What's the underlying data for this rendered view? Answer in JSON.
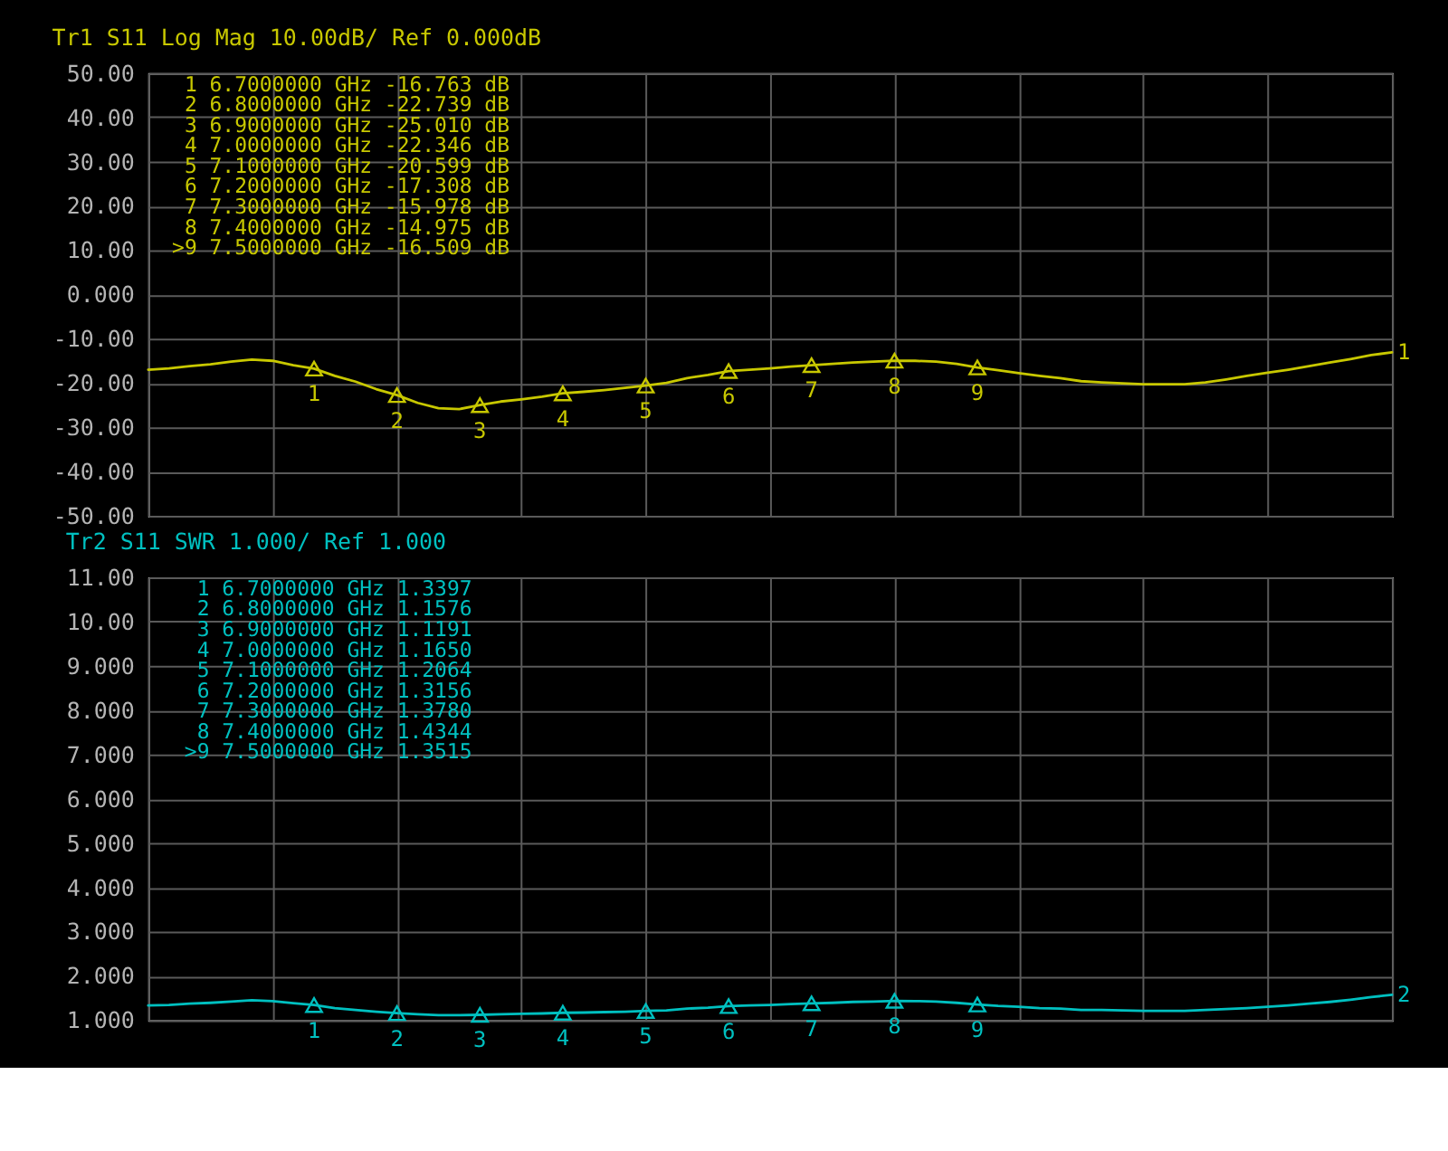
{
  "chart_data": [
    {
      "type": "line",
      "title": "Tr1 S11 Log Mag 10.00dB/ Ref 0.000dB",
      "categories": [
        null,
        null,
        null,
        null,
        null,
        null,
        null,
        null,
        null,
        null,
        null,
        null,
        null,
        null,
        null,
        null,
        null,
        null,
        null,
        null,
        null,
        null,
        null,
        null,
        null,
        null,
        null,
        null,
        null,
        null,
        null,
        null,
        null,
        null,
        null,
        null,
        null,
        null,
        null,
        null,
        null,
        null,
        null,
        null,
        null,
        null,
        null,
        null,
        null,
        null,
        null,
        null,
        null,
        null,
        null,
        null,
        null,
        null,
        null,
        null,
        null
      ],
      "ylim": [
        -50,
        50
      ],
      "yticks": [
        {
          "value": 50,
          "label": "50.00"
        },
        {
          "value": 40,
          "label": "40.00"
        },
        {
          "value": 30,
          "label": "30.00"
        },
        {
          "value": 20,
          "label": "20.00"
        },
        {
          "value": 10,
          "label": "10.00"
        },
        {
          "value": 0,
          "label": "0.000"
        },
        {
          "value": -10,
          "label": "-10.00"
        },
        {
          "value": -20,
          "label": "-20.00"
        },
        {
          "value": -30,
          "label": "-30.00"
        },
        {
          "value": -40,
          "label": "-40.00"
        },
        {
          "value": -50,
          "label": "-50.00"
        }
      ],
      "tick_labels": "y",
      "grid": true,
      "series": [
        {
          "name": "1",
          "color": "#c8c800",
          "values": [
            -17.0,
            -16.7,
            -16.2,
            -15.8,
            -15.2,
            -14.7,
            -15.0,
            -16.0,
            -16.763,
            -18.4,
            -19.7,
            -21.4,
            -22.739,
            -24.5,
            -25.7,
            -25.9,
            -25.01,
            -24.2,
            -23.7,
            -23.1,
            -22.346,
            -22.0,
            -21.6,
            -21.1,
            -20.599,
            -20.0,
            -18.9,
            -18.2,
            -17.308,
            -17.0,
            -16.7,
            -16.3,
            -15.978,
            -15.7,
            -15.4,
            -15.2,
            -14.975,
            -15.0,
            -15.2,
            -15.7,
            -16.509,
            -17.1,
            -17.8,
            -18.4,
            -18.9,
            -19.6,
            -19.9,
            -20.1,
            -20.3,
            -20.3,
            -20.3,
            -19.9,
            -19.2,
            -18.4,
            -17.7,
            -17.0,
            -16.2,
            -15.4,
            -14.6,
            -13.7,
            -13.1
          ]
        },
        {
          "type": "scatter",
          "name": "1",
          "color": "#c8c800",
          "marker": "triangle",
          "values": [
            null,
            null,
            null,
            null,
            null,
            null,
            null,
            null,
            -16.763,
            null,
            null,
            null,
            null,
            null,
            null,
            null,
            null,
            null,
            null,
            null,
            null,
            null,
            null,
            null,
            null,
            null,
            null,
            null,
            null,
            null,
            null,
            null,
            null,
            null,
            null,
            null,
            null,
            null,
            null,
            null,
            null,
            null,
            null,
            null,
            null,
            null,
            null,
            null,
            null,
            null,
            null,
            null,
            null,
            null,
            null,
            null,
            null,
            null,
            null,
            null,
            null
          ]
        },
        {
          "type": "scatter",
          "name": "2",
          "color": "#c8c800",
          "marker": "triangle",
          "values": [
            null,
            null,
            null,
            null,
            null,
            null,
            null,
            null,
            null,
            null,
            null,
            null,
            -22.739,
            null,
            null,
            null,
            null,
            null,
            null,
            null,
            null,
            null,
            null,
            null,
            null,
            null,
            null,
            null,
            null,
            null,
            null,
            null,
            null,
            null,
            null,
            null,
            null,
            null,
            null,
            null,
            null,
            null,
            null,
            null,
            null,
            null,
            null,
            null,
            null,
            null,
            null,
            null,
            null,
            null,
            null,
            null,
            null,
            null,
            null,
            null,
            null
          ]
        },
        {
          "type": "scatter",
          "name": "3",
          "color": "#c8c800",
          "marker": "triangle",
          "values": [
            null,
            null,
            null,
            null,
            null,
            null,
            null,
            null,
            null,
            null,
            null,
            null,
            null,
            null,
            null,
            null,
            -25.01,
            null,
            null,
            null,
            null,
            null,
            null,
            null,
            null,
            null,
            null,
            null,
            null,
            null,
            null,
            null,
            null,
            null,
            null,
            null,
            null,
            null,
            null,
            null,
            null,
            null,
            null,
            null,
            null,
            null,
            null,
            null,
            null,
            null,
            null,
            null,
            null,
            null,
            null,
            null,
            null,
            null,
            null,
            null,
            null
          ]
        },
        {
          "type": "scatter",
          "name": "4",
          "color": "#c8c800",
          "marker": "triangle",
          "values": [
            null,
            null,
            null,
            null,
            null,
            null,
            null,
            null,
            null,
            null,
            null,
            null,
            null,
            null,
            null,
            null,
            null,
            null,
            null,
            null,
            -22.346,
            null,
            null,
            null,
            null,
            null,
            null,
            null,
            null,
            null,
            null,
            null,
            null,
            null,
            null,
            null,
            null,
            null,
            null,
            null,
            null,
            null,
            null,
            null,
            null,
            null,
            null,
            null,
            null,
            null,
            null,
            null,
            null,
            null,
            null,
            null,
            null,
            null,
            null,
            null,
            null
          ]
        },
        {
          "type": "scatter",
          "name": "5",
          "color": "#c8c800",
          "marker": "triangle",
          "values": [
            null,
            null,
            null,
            null,
            null,
            null,
            null,
            null,
            null,
            null,
            null,
            null,
            null,
            null,
            null,
            null,
            null,
            null,
            null,
            null,
            null,
            null,
            null,
            null,
            -20.599,
            null,
            null,
            null,
            null,
            null,
            null,
            null,
            null,
            null,
            null,
            null,
            null,
            null,
            null,
            null,
            null,
            null,
            null,
            null,
            null,
            null,
            null,
            null,
            null,
            null,
            null,
            null,
            null,
            null,
            null,
            null,
            null,
            null,
            null,
            null,
            null
          ]
        },
        {
          "type": "scatter",
          "name": "6",
          "color": "#c8c800",
          "marker": "triangle",
          "values": [
            null,
            null,
            null,
            null,
            null,
            null,
            null,
            null,
            null,
            null,
            null,
            null,
            null,
            null,
            null,
            null,
            null,
            null,
            null,
            null,
            null,
            null,
            null,
            null,
            null,
            null,
            null,
            null,
            -17.308,
            null,
            null,
            null,
            null,
            null,
            null,
            null,
            null,
            null,
            null,
            null,
            null,
            null,
            null,
            null,
            null,
            null,
            null,
            null,
            null,
            null,
            null,
            null,
            null,
            null,
            null,
            null,
            null,
            null,
            null,
            null,
            null
          ]
        },
        {
          "type": "scatter",
          "name": "7",
          "color": "#c8c800",
          "marker": "triangle",
          "values": [
            null,
            null,
            null,
            null,
            null,
            null,
            null,
            null,
            null,
            null,
            null,
            null,
            null,
            null,
            null,
            null,
            null,
            null,
            null,
            null,
            null,
            null,
            null,
            null,
            null,
            null,
            null,
            null,
            null,
            null,
            null,
            null,
            -15.978,
            null,
            null,
            null,
            null,
            null,
            null,
            null,
            null,
            null,
            null,
            null,
            null,
            null,
            null,
            null,
            null,
            null,
            null,
            null,
            null,
            null,
            null,
            null,
            null,
            null,
            null,
            null,
            null
          ]
        },
        {
          "type": "scatter",
          "name": "8",
          "color": "#c8c800",
          "marker": "triangle",
          "values": [
            null,
            null,
            null,
            null,
            null,
            null,
            null,
            null,
            null,
            null,
            null,
            null,
            null,
            null,
            null,
            null,
            null,
            null,
            null,
            null,
            null,
            null,
            null,
            null,
            null,
            null,
            null,
            null,
            null,
            null,
            null,
            null,
            null,
            null,
            null,
            null,
            -14.975,
            null,
            null,
            null,
            null,
            null,
            null,
            null,
            null,
            null,
            null,
            null,
            null,
            null,
            null,
            null,
            null,
            null,
            null,
            null,
            null,
            null,
            null,
            null,
            null
          ]
        },
        {
          "type": "scatter",
          "name": "9",
          "color": "#c8c800",
          "marker": "triangle",
          "values": [
            null,
            null,
            null,
            null,
            null,
            null,
            null,
            null,
            null,
            null,
            null,
            null,
            null,
            null,
            null,
            null,
            null,
            null,
            null,
            null,
            null,
            null,
            null,
            null,
            null,
            null,
            null,
            null,
            null,
            null,
            null,
            null,
            null,
            null,
            null,
            null,
            null,
            null,
            null,
            null,
            -16.509,
            null,
            null,
            null,
            null,
            null,
            null,
            null,
            null,
            null,
            null,
            null,
            null,
            null,
            null,
            null,
            null,
            null,
            null,
            null,
            null
          ]
        }
      ],
      "annotations": [
        "1  6.7000000 GHz -16.763 dB",
        "2  6.8000000 GHz -22.739 dB",
        "3  6.9000000 GHz -25.010 dB",
        "4  7.0000000 GHz -22.346 dB",
        "5  7.1000000 GHz -20.599 dB",
        "6  7.2000000 GHz -17.308 dB",
        "7  7.3000000 GHz -15.978 dB",
        "8  7.4000000 GHz -14.975 dB",
        ">9  7.5000000 GHz -16.509 dB"
      ]
    },
    {
      "type": "line",
      "title": "Tr2 S11 SWR 1.000/ Ref 1.000",
      "categories": [
        null,
        null,
        null,
        null,
        null,
        null,
        null,
        null,
        null,
        null,
        null,
        null,
        null,
        null,
        null,
        null,
        null,
        null,
        null,
        null,
        null,
        null,
        null,
        null,
        null,
        null,
        null,
        null,
        null,
        null,
        null,
        null,
        null,
        null,
        null,
        null,
        null,
        null,
        null,
        null,
        null,
        null,
        null,
        null,
        null,
        null,
        null,
        null,
        null,
        null,
        null,
        null,
        null,
        null,
        null,
        null,
        null,
        null,
        null,
        null,
        null
      ],
      "ylim": [
        1,
        11
      ],
      "yticks": [
        {
          "value": 11,
          "label": "11.00"
        },
        {
          "value": 10,
          "label": "10.00"
        },
        {
          "value": 9,
          "label": "9.000"
        },
        {
          "value": 8,
          "label": "8.000"
        },
        {
          "value": 7,
          "label": "7.000"
        },
        {
          "value": 6,
          "label": "6.000"
        },
        {
          "value": 5,
          "label": "5.000"
        },
        {
          "value": 4,
          "label": "4.000"
        },
        {
          "value": 3,
          "label": "3.000"
        },
        {
          "value": 2,
          "label": "2.000"
        },
        {
          "value": 1,
          "label": "1.000"
        }
      ],
      "tick_labels": "y",
      "grid": true,
      "series": [
        {
          "name": "2",
          "color": "#00c0c0",
          "values": [
            1.33,
            1.34,
            1.37,
            1.39,
            1.42,
            1.45,
            1.43,
            1.38,
            1.3397,
            1.27,
            1.23,
            1.19,
            1.1576,
            1.13,
            1.11,
            1.11,
            1.1191,
            1.13,
            1.14,
            1.15,
            1.165,
            1.17,
            1.18,
            1.19,
            1.2064,
            1.22,
            1.26,
            1.28,
            1.3156,
            1.33,
            1.34,
            1.36,
            1.378,
            1.39,
            1.41,
            1.42,
            1.4344,
            1.43,
            1.42,
            1.39,
            1.3515,
            1.32,
            1.3,
            1.27,
            1.26,
            1.23,
            1.23,
            1.22,
            1.21,
            1.21,
            1.21,
            1.23,
            1.25,
            1.27,
            1.3,
            1.33,
            1.37,
            1.41,
            1.46,
            1.52,
            1.57
          ]
        },
        {
          "type": "scatter",
          "name": "1",
          "color": "#00c0c0",
          "marker": "triangle",
          "values": [
            null,
            null,
            null,
            null,
            null,
            null,
            null,
            null,
            1.3397,
            null,
            null,
            null,
            null,
            null,
            null,
            null,
            null,
            null,
            null,
            null,
            null,
            null,
            null,
            null,
            null,
            null,
            null,
            null,
            null,
            null,
            null,
            null,
            null,
            null,
            null,
            null,
            null,
            null,
            null,
            null,
            null,
            null,
            null,
            null,
            null,
            null,
            null,
            null,
            null,
            null,
            null,
            null,
            null,
            null,
            null,
            null,
            null,
            null,
            null,
            null,
            null
          ]
        },
        {
          "type": "scatter",
          "name": "2",
          "color": "#00c0c0",
          "marker": "triangle",
          "values": [
            null,
            null,
            null,
            null,
            null,
            null,
            null,
            null,
            null,
            null,
            null,
            null,
            1.1576,
            null,
            null,
            null,
            null,
            null,
            null,
            null,
            null,
            null,
            null,
            null,
            null,
            null,
            null,
            null,
            null,
            null,
            null,
            null,
            null,
            null,
            null,
            null,
            null,
            null,
            null,
            null,
            null,
            null,
            null,
            null,
            null,
            null,
            null,
            null,
            null,
            null,
            null,
            null,
            null,
            null,
            null,
            null,
            null,
            null,
            null,
            null,
            null
          ]
        },
        {
          "type": "scatter",
          "name": "3",
          "color": "#00c0c0",
          "marker": "triangle",
          "values": [
            null,
            null,
            null,
            null,
            null,
            null,
            null,
            null,
            null,
            null,
            null,
            null,
            null,
            null,
            null,
            null,
            1.1191,
            null,
            null,
            null,
            null,
            null,
            null,
            null,
            null,
            null,
            null,
            null,
            null,
            null,
            null,
            null,
            null,
            null,
            null,
            null,
            null,
            null,
            null,
            null,
            null,
            null,
            null,
            null,
            null,
            null,
            null,
            null,
            null,
            null,
            null,
            null,
            null,
            null,
            null,
            null,
            null,
            null,
            null,
            null,
            null
          ]
        },
        {
          "type": "scatter",
          "name": "4",
          "color": "#00c0c0",
          "marker": "triangle",
          "values": [
            null,
            null,
            null,
            null,
            null,
            null,
            null,
            null,
            null,
            null,
            null,
            null,
            null,
            null,
            null,
            null,
            null,
            null,
            null,
            null,
            1.165,
            null,
            null,
            null,
            null,
            null,
            null,
            null,
            null,
            null,
            null,
            null,
            null,
            null,
            null,
            null,
            null,
            null,
            null,
            null,
            null,
            null,
            null,
            null,
            null,
            null,
            null,
            null,
            null,
            null,
            null,
            null,
            null,
            null,
            null,
            null,
            null,
            null,
            null,
            null,
            null
          ]
        },
        {
          "type": "scatter",
          "name": "5",
          "color": "#00c0c0",
          "marker": "triangle",
          "values": [
            null,
            null,
            null,
            null,
            null,
            null,
            null,
            null,
            null,
            null,
            null,
            null,
            null,
            null,
            null,
            null,
            null,
            null,
            null,
            null,
            null,
            null,
            null,
            null,
            1.2064,
            null,
            null,
            null,
            null,
            null,
            null,
            null,
            null,
            null,
            null,
            null,
            null,
            null,
            null,
            null,
            null,
            null,
            null,
            null,
            null,
            null,
            null,
            null,
            null,
            null,
            null,
            null,
            null,
            null,
            null,
            null,
            null,
            null,
            null,
            null,
            null
          ]
        },
        {
          "type": "scatter",
          "name": "6",
          "color": "#00c0c0",
          "marker": "triangle",
          "values": [
            null,
            null,
            null,
            null,
            null,
            null,
            null,
            null,
            null,
            null,
            null,
            null,
            null,
            null,
            null,
            null,
            null,
            null,
            null,
            null,
            null,
            null,
            null,
            null,
            null,
            null,
            null,
            null,
            1.3156,
            null,
            null,
            null,
            null,
            null,
            null,
            null,
            null,
            null,
            null,
            null,
            null,
            null,
            null,
            null,
            null,
            null,
            null,
            null,
            null,
            null,
            null,
            null,
            null,
            null,
            null,
            null,
            null,
            null,
            null,
            null,
            null
          ]
        },
        {
          "type": "scatter",
          "name": "7",
          "color": "#00c0c0",
          "marker": "triangle",
          "values": [
            null,
            null,
            null,
            null,
            null,
            null,
            null,
            null,
            null,
            null,
            null,
            null,
            null,
            null,
            null,
            null,
            null,
            null,
            null,
            null,
            null,
            null,
            null,
            null,
            null,
            null,
            null,
            null,
            null,
            null,
            null,
            null,
            1.378,
            null,
            null,
            null,
            null,
            null,
            null,
            null,
            null,
            null,
            null,
            null,
            null,
            null,
            null,
            null,
            null,
            null,
            null,
            null,
            null,
            null,
            null,
            null,
            null,
            null,
            null,
            null,
            null
          ]
        },
        {
          "type": "scatter",
          "name": "8",
          "color": "#00c0c0",
          "marker": "triangle",
          "values": [
            null,
            null,
            null,
            null,
            null,
            null,
            null,
            null,
            null,
            null,
            null,
            null,
            null,
            null,
            null,
            null,
            null,
            null,
            null,
            null,
            null,
            null,
            null,
            null,
            null,
            null,
            null,
            null,
            null,
            null,
            null,
            null,
            null,
            null,
            null,
            null,
            1.4344,
            null,
            null,
            null,
            null,
            null,
            null,
            null,
            null,
            null,
            null,
            null,
            null,
            null,
            null,
            null,
            null,
            null,
            null,
            null,
            null,
            null,
            null,
            null,
            null
          ]
        },
        {
          "type": "scatter",
          "name": "9",
          "color": "#00c0c0",
          "marker": "triangle",
          "values": [
            null,
            null,
            null,
            null,
            null,
            null,
            null,
            null,
            null,
            null,
            null,
            null,
            null,
            null,
            null,
            null,
            null,
            null,
            null,
            null,
            null,
            null,
            null,
            null,
            null,
            null,
            null,
            null,
            null,
            null,
            null,
            null,
            null,
            null,
            null,
            null,
            null,
            null,
            null,
            null,
            1.3515,
            null,
            null,
            null,
            null,
            null,
            null,
            null,
            null,
            null,
            null,
            null,
            null,
            null,
            null,
            null,
            null,
            null,
            null,
            null,
            null
          ]
        }
      ],
      "annotations": [
        "1  6.7000000 GHz  1.3397",
        "2  6.8000000 GHz  1.1576",
        "3  6.9000000 GHz  1.1191",
        "4  7.0000000 GHz  1.1650",
        "5  7.1000000 GHz  1.2064",
        "6  7.2000000 GHz  1.3156",
        "7  7.3000000 GHz  1.3780",
        "8  7.4000000 GHz  1.4344",
        ">9  7.5000000 GHz  1.3515"
      ]
    }
  ]
}
